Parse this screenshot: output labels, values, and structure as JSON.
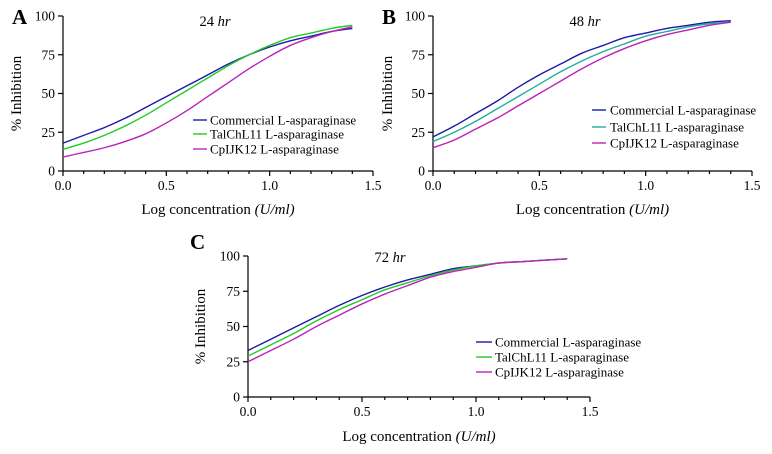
{
  "chart_data": [
    {
      "panel": "A",
      "type": "line",
      "title": {
        "prefix": "24 ",
        "unit": "hr"
      },
      "ylabel": "% Inhibition",
      "xlabel": {
        "text": "Log concentration ",
        "unit": "(U/ml)"
      },
      "xlim": [
        0.0,
        1.5
      ],
      "ylim": [
        0,
        100
      ],
      "xticks": [
        "0.0",
        "0.5",
        "1.0",
        "1.5"
      ],
      "yticks": [
        "0",
        "25",
        "50",
        "75",
        "100"
      ],
      "legend_position": "lower-right",
      "series": [
        {
          "name": "Commercial L-asparaginase",
          "color": "#1a1aa8",
          "x": [
            0.0,
            0.1,
            0.2,
            0.3,
            0.4,
            0.5,
            0.6,
            0.7,
            0.8,
            0.9,
            1.0,
            1.1,
            1.2,
            1.3,
            1.4
          ],
          "y": [
            18,
            23,
            28,
            34,
            41,
            48,
            55,
            62,
            69,
            75,
            80,
            84,
            87,
            90,
            92
          ]
        },
        {
          "name": "TalChL11 L-asparaginase",
          "color": "#22cc22",
          "x": [
            0.0,
            0.1,
            0.2,
            0.3,
            0.4,
            0.5,
            0.6,
            0.7,
            0.8,
            0.9,
            1.0,
            1.1,
            1.2,
            1.3,
            1.4
          ],
          "y": [
            14,
            18,
            23,
            29,
            36,
            44,
            52,
            60,
            68,
            75,
            81,
            86,
            89,
            92,
            94
          ]
        },
        {
          "name": "CpIJK12 L-asparaginase",
          "color": "#bb22bb",
          "x": [
            0.0,
            0.1,
            0.2,
            0.3,
            0.4,
            0.5,
            0.6,
            0.7,
            0.8,
            0.9,
            1.0,
            1.1,
            1.2,
            1.3,
            1.4
          ],
          "y": [
            9,
            12,
            15,
            19,
            24,
            31,
            39,
            48,
            57,
            66,
            74,
            81,
            86,
            90,
            93
          ]
        }
      ]
    },
    {
      "panel": "B",
      "type": "line",
      "title": {
        "prefix": "48 ",
        "unit": "hr"
      },
      "ylabel": "% Inhibition",
      "xlabel": {
        "text": "Log concentration ",
        "unit": "(U/ml)"
      },
      "xlim": [
        0.0,
        1.5
      ],
      "ylim": [
        0,
        100
      ],
      "xticks": [
        "0.0",
        "0.5",
        "1.0",
        "1.5"
      ],
      "yticks": [
        "0",
        "25",
        "50",
        "75",
        "100"
      ],
      "legend_position": "right",
      "series": [
        {
          "name": "Commercial L-asparaginase",
          "color": "#1a1aa8",
          "x": [
            0.0,
            0.1,
            0.2,
            0.3,
            0.4,
            0.5,
            0.6,
            0.7,
            0.8,
            0.9,
            1.0,
            1.1,
            1.2,
            1.3,
            1.4
          ],
          "y": [
            22,
            29,
            37,
            45,
            54,
            62,
            69,
            76,
            81,
            86,
            89,
            92,
            94,
            96,
            97
          ]
        },
        {
          "name": "TalChL11 L-asparaginase",
          "color": "#1fb09a",
          "x": [
            0.0,
            0.1,
            0.2,
            0.3,
            0.4,
            0.5,
            0.6,
            0.7,
            0.8,
            0.9,
            1.0,
            1.1,
            1.2,
            1.3,
            1.4
          ],
          "y": [
            19,
            25,
            32,
            40,
            48,
            56,
            64,
            71,
            77,
            82,
            87,
            90,
            93,
            95,
            96
          ]
        },
        {
          "name": "CpIJK12 L-asparaginase",
          "color": "#bb22bb",
          "x": [
            0.0,
            0.1,
            0.2,
            0.3,
            0.4,
            0.5,
            0.6,
            0.7,
            0.8,
            0.9,
            1.0,
            1.1,
            1.2,
            1.3,
            1.4
          ],
          "y": [
            15,
            20,
            27,
            34,
            42,
            50,
            58,
            66,
            73,
            79,
            84,
            88,
            91,
            94,
            96
          ]
        }
      ]
    },
    {
      "panel": "C",
      "type": "line",
      "title": {
        "prefix": "72 ",
        "unit": "hr"
      },
      "ylabel": "% Inhibition",
      "xlabel": {
        "text": "Log concentration ",
        "unit": "(U/ml)"
      },
      "xlim": [
        0.0,
        1.5
      ],
      "ylim": [
        0,
        100
      ],
      "xticks": [
        "0.0",
        "0.5",
        "1.0",
        "1.5"
      ],
      "yticks": [
        "0",
        "25",
        "50",
        "75",
        "100"
      ],
      "legend_position": "lower-right",
      "series": [
        {
          "name": "Commercial L-asparaginase",
          "color": "#1a1aa8",
          "x": [
            0.0,
            0.1,
            0.2,
            0.3,
            0.4,
            0.5,
            0.6,
            0.7,
            0.8,
            0.9,
            1.0,
            1.1,
            1.2,
            1.3,
            1.4
          ],
          "y": [
            33,
            41,
            49,
            57,
            65,
            72,
            78,
            83,
            87,
            91,
            93,
            95,
            96,
            97,
            98
          ]
        },
        {
          "name": "TalChL11 L-asparaginase",
          "color": "#22cc22",
          "x": [
            0.0,
            0.1,
            0.2,
            0.3,
            0.4,
            0.5,
            0.6,
            0.7,
            0.8,
            0.9,
            1.0,
            1.1,
            1.2,
            1.3,
            1.4
          ],
          "y": [
            29,
            37,
            45,
            54,
            62,
            69,
            76,
            81,
            86,
            90,
            93,
            95,
            96,
            97,
            98
          ]
        },
        {
          "name": "CpIJK12 L-asparaginase",
          "color": "#bb22bb",
          "x": [
            0.0,
            0.1,
            0.2,
            0.3,
            0.4,
            0.5,
            0.6,
            0.7,
            0.8,
            0.9,
            1.0,
            1.1,
            1.2,
            1.3,
            1.4
          ],
          "y": [
            25,
            33,
            41,
            50,
            58,
            66,
            73,
            79,
            85,
            89,
            92,
            95,
            96,
            97,
            98
          ]
        }
      ]
    }
  ]
}
